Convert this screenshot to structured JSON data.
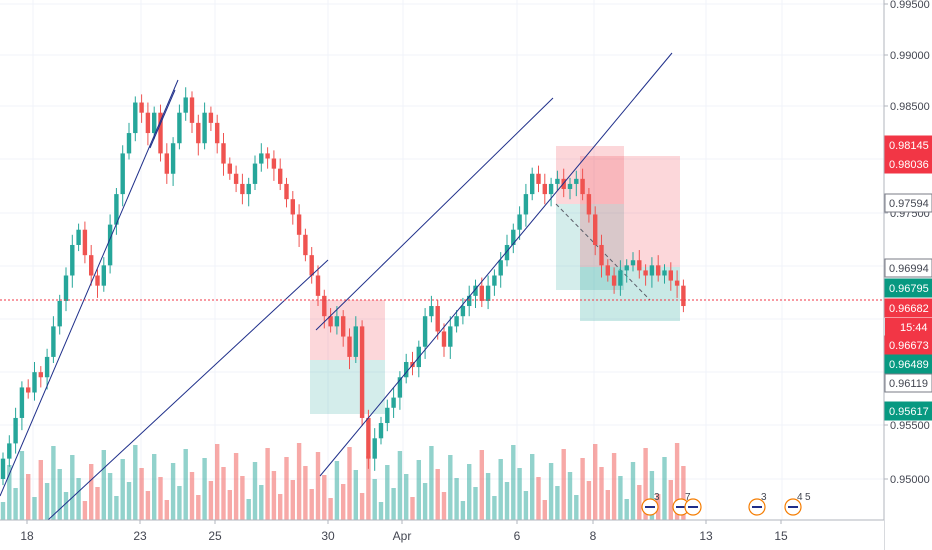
{
  "chart_data": {
    "type": "candlestick",
    "x_ticks": [
      "18",
      "23",
      "25",
      "30",
      "Apr",
      "6",
      "8",
      "13",
      "15"
    ],
    "y_ticks": [
      "0.99500",
      "0.99000",
      "0.98500",
      "0.97500",
      "0.95500",
      "0.95000"
    ],
    "current_price": "0.96682",
    "countdown": "15:44",
    "price_tags": [
      {
        "label": "0.98145",
        "color": "#f23645",
        "style": "filled"
      },
      {
        "label": "0.98036",
        "color": "#f23645",
        "style": "filled"
      },
      {
        "label": "0.97594",
        "color": "#787b86",
        "style": "outline"
      },
      {
        "label": "0.96994",
        "color": "#787b86",
        "style": "outline"
      },
      {
        "label": "0.96795",
        "color": "#089981",
        "style": "filled"
      },
      {
        "label": "0.96682",
        "color": "#f23645",
        "style": "filled"
      },
      {
        "label": "0.96673",
        "color": "#f23645",
        "style": "filled"
      },
      {
        "label": "0.96489",
        "color": "#089981",
        "style": "filled"
      },
      {
        "label": "0.96119",
        "color": "#787b86",
        "style": "outline"
      },
      {
        "label": "0.95617",
        "color": "#089981",
        "style": "filled"
      }
    ],
    "events": [
      {
        "count": "3"
      },
      {
        "count": "7"
      },
      {
        "count": "3"
      },
      {
        "count": "4"
      },
      {
        "count": "5"
      }
    ],
    "colors": {
      "up": "#26a69a",
      "down": "#ef5350",
      "trendline": "#1f2f8a",
      "current_line": "#f23645",
      "profit_zone": "#26a69a",
      "loss_zone": "#f23645"
    }
  }
}
